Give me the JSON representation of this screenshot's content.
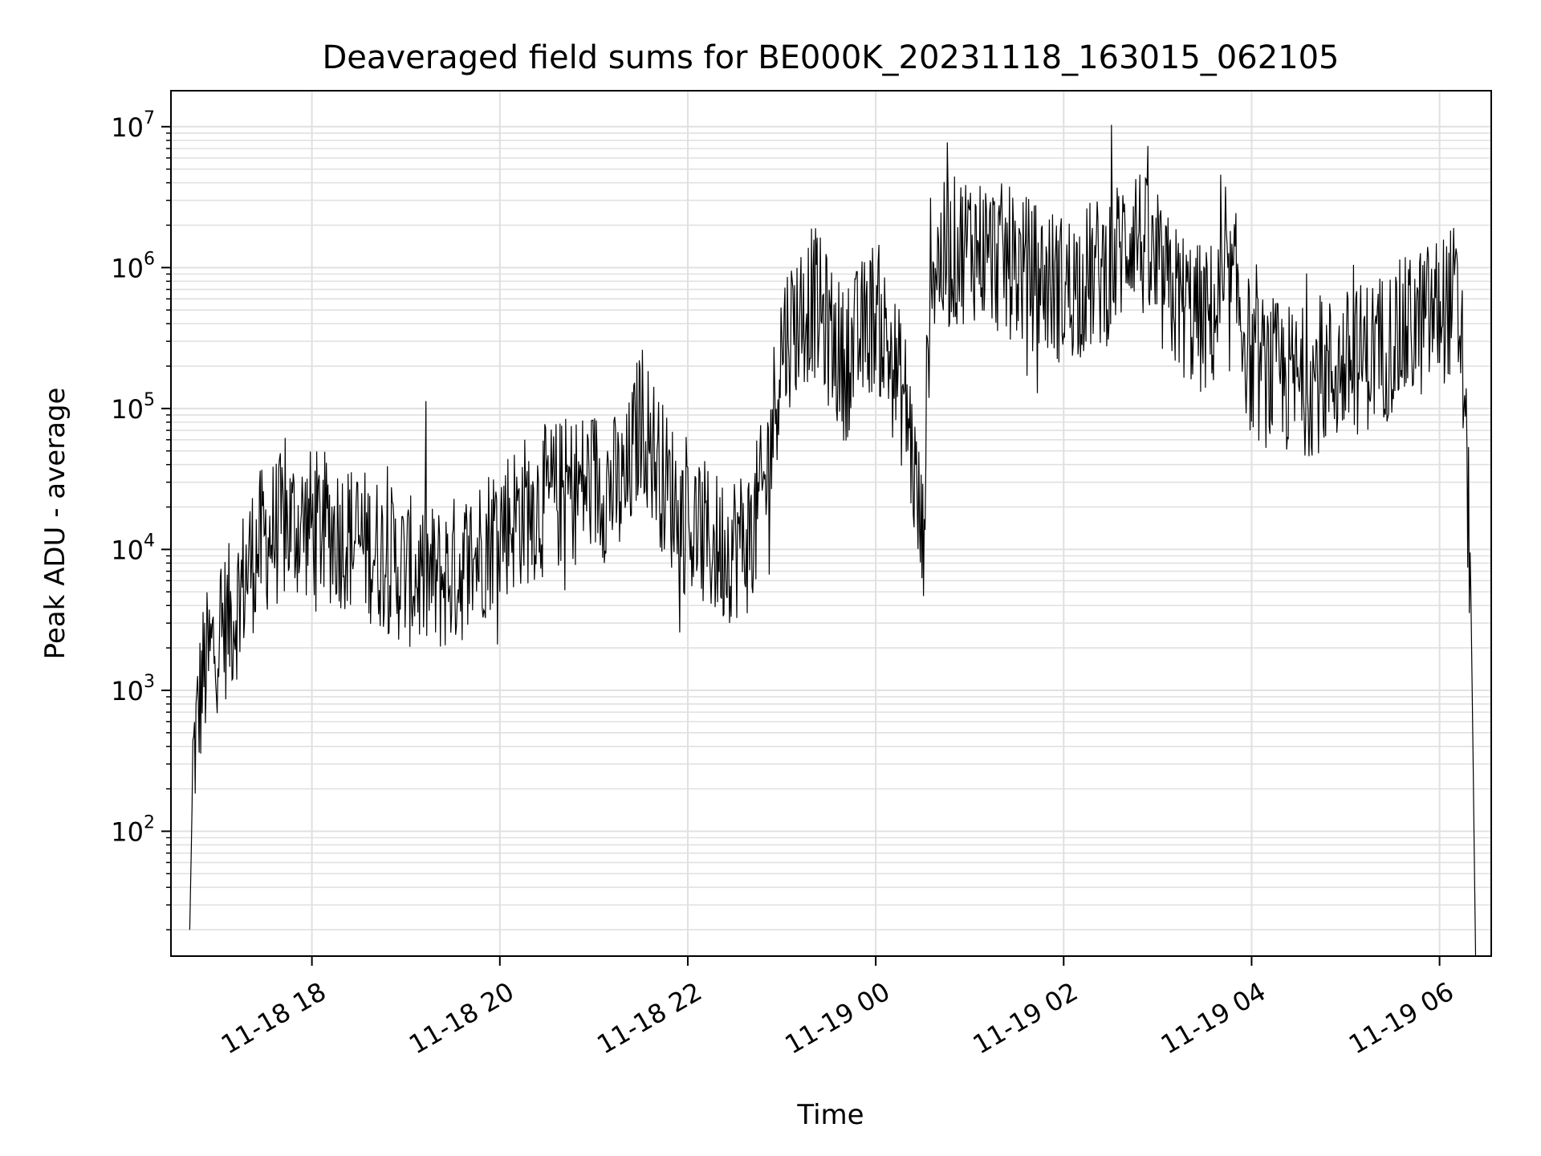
{
  "chart_data": {
    "type": "line",
    "title": "Deaveraged field sums for BE000K_20231118_163015_062105",
    "xlabel": "Time",
    "ylabel": "Peak ADU - average",
    "y_scale": "log",
    "xlim": [
      "2023-11-18 16:30",
      "2023-11-19 06:33"
    ],
    "ylim": [
      13,
      18000000
    ],
    "grid": true,
    "line_color": "#000000",
    "grid_color": "#e0e0e0",
    "x_ticks": [
      {
        "value": "2023-11-18 18:00",
        "label": "11-18 18"
      },
      {
        "value": "2023-11-18 20:00",
        "label": "11-18 20"
      },
      {
        "value": "2023-11-18 22:00",
        "label": "11-18 22"
      },
      {
        "value": "2023-11-19 00:00",
        "label": "11-19 00"
      },
      {
        "value": "2023-11-19 02:00",
        "label": "11-19 02"
      },
      {
        "value": "2023-11-19 04:00",
        "label": "11-19 04"
      },
      {
        "value": "2023-11-19 06:00",
        "label": "11-19 06"
      }
    ],
    "y_ticks": [
      {
        "value": 100,
        "base": "10",
        "exp": "2"
      },
      {
        "value": 1000,
        "base": "10",
        "exp": "3"
      },
      {
        "value": 10000,
        "base": "10",
        "exp": "4"
      },
      {
        "value": 100000,
        "base": "10",
        "exp": "5"
      },
      {
        "value": 1000000,
        "base": "10",
        "exp": "6"
      },
      {
        "value": 10000000,
        "base": "10",
        "exp": "7"
      }
    ],
    "series": [
      {
        "points": [
          [
            "2023-11-18 16:42",
            20
          ],
          [
            "2023-11-18 16:44",
            300
          ],
          [
            "2023-11-18 16:50",
            1200
          ],
          [
            "2023-11-18 17:00",
            2500
          ],
          [
            "2023-11-18 17:10",
            3500
          ],
          [
            "2023-11-18 17:20",
            8000
          ],
          [
            "2023-11-18 17:30",
            12000
          ],
          [
            "2023-11-18 17:45",
            15000
          ],
          [
            "2023-11-18 18:00",
            15000
          ],
          [
            "2023-11-18 18:20",
            13000
          ],
          [
            "2023-11-18 18:40",
            10000
          ],
          [
            "2023-11-18 19:00",
            7000
          ],
          [
            "2023-11-18 19:20",
            6000
          ],
          [
            "2023-11-18 19:40",
            8000
          ],
          [
            "2023-11-18 20:00",
            15000
          ],
          [
            "2023-11-18 20:20",
            20000
          ],
          [
            "2023-11-18 20:40",
            25000
          ],
          [
            "2023-11-18 21:00",
            30000
          ],
          [
            "2023-11-18 21:20",
            25000
          ],
          [
            "2023-11-18 21:30",
            90000
          ],
          [
            "2023-11-18 21:45",
            30000
          ],
          [
            "2023-11-18 22:00",
            15000
          ],
          [
            "2023-11-18 22:20",
            10000
          ],
          [
            "2023-11-18 22:40",
            12000
          ],
          [
            "2023-11-18 22:50",
            30000
          ],
          [
            "2023-11-18 23:00",
            300000
          ],
          [
            "2023-11-18 23:20",
            600000
          ],
          [
            "2023-11-18 23:40",
            200000
          ],
          [
            "2023-11-19 00:00",
            500000
          ],
          [
            "2023-11-19 00:20",
            100000
          ],
          [
            "2023-11-19 00:30",
            10000
          ],
          [
            "2023-11-19 00:35",
            1000000
          ],
          [
            "2023-11-19 01:00",
            1500000
          ],
          [
            "2023-11-19 01:30",
            1000000
          ],
          [
            "2023-11-19 02:00",
            700000
          ],
          [
            "2023-11-19 02:30",
            1000000
          ],
          [
            "2023-11-19 02:45",
            2000000
          ],
          [
            "2023-11-19 03:00",
            800000
          ],
          [
            "2023-11-19 03:30",
            400000
          ],
          [
            "2023-11-19 03:50",
            700000
          ],
          [
            "2023-11-19 04:00",
            200000
          ],
          [
            "2023-11-19 04:30",
            150000
          ],
          [
            "2023-11-19 05:00",
            200000
          ],
          [
            "2023-11-19 05:30",
            300000
          ],
          [
            "2023-11-19 06:00",
            500000
          ],
          [
            "2023-11-19 06:10",
            600000
          ],
          [
            "2023-11-19 06:15",
            200000
          ],
          [
            "2023-11-19 06:20",
            5000
          ],
          [
            "2023-11-19 06:22",
            100
          ],
          [
            "2023-11-19 06:23",
            13
          ]
        ]
      }
    ]
  }
}
